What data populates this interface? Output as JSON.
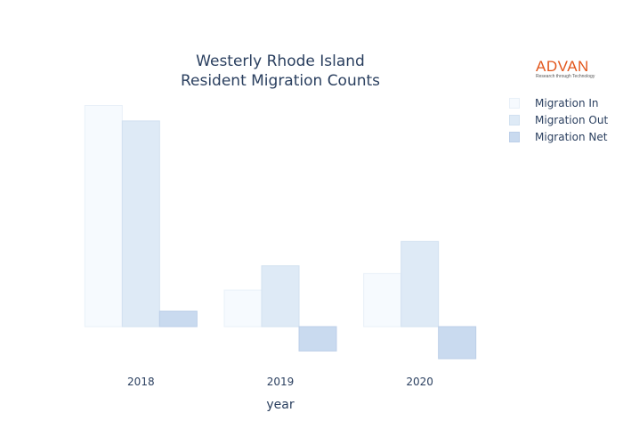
{
  "logo": {
    "word": "ADVAN",
    "tagline": "Research through Technology"
  },
  "chart_data": {
    "type": "bar",
    "title_lines": [
      "Westerly Rhode Island",
      "Resident Migration Counts"
    ],
    "xlabel": "year",
    "ylabel": "",
    "categories": [
      "2018",
      "2019",
      "2020"
    ],
    "series": [
      {
        "name": "Migration In",
        "values": [
          1000,
          165,
          240
        ],
        "color": "#f6fafe",
        "stroke": "#e8f0f8"
      },
      {
        "name": "Migration Out",
        "values": [
          930,
          275,
          385
        ],
        "color": "#deeaf6",
        "stroke": "#d2e1f0"
      },
      {
        "name": "Migration Net",
        "values": [
          70,
          -110,
          -145
        ],
        "color": "#c9daef",
        "stroke": "#bccfe8"
      }
    ],
    "ylim": [
      -160,
      1010
    ],
    "grid": false,
    "yaxis_ticks_shown": false,
    "legend_position": "top-right"
  }
}
